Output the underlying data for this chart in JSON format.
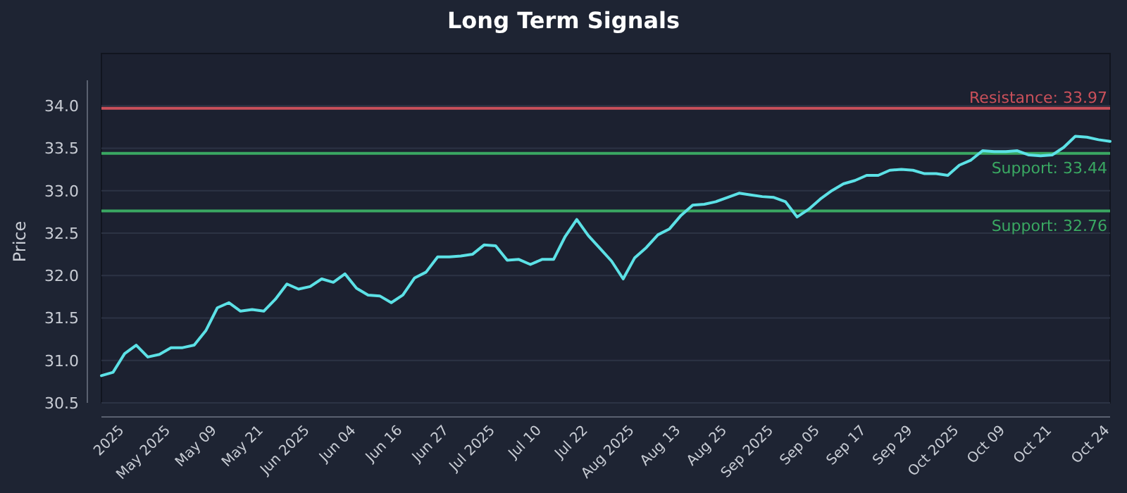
{
  "chart_data": {
    "type": "line",
    "title": "Long Term Signals",
    "ylabel": "Price",
    "categories": [
      null,
      null,
      "2025",
      null,
      null,
      null,
      "May 2025",
      null,
      null,
      null,
      "May 09",
      null,
      null,
      null,
      "May 21",
      null,
      null,
      null,
      "Jun 2025",
      null,
      null,
      null,
      "Jun 04",
      null,
      null,
      null,
      "Jun 16",
      null,
      null,
      null,
      "Jun 27",
      null,
      null,
      null,
      "Jul 2025",
      null,
      null,
      null,
      "Jul 10",
      null,
      null,
      null,
      "Jul 22",
      null,
      null,
      null,
      "Aug 2025",
      null,
      null,
      null,
      "Aug 13",
      null,
      null,
      null,
      "Aug 25",
      null,
      null,
      null,
      "Sep 2025",
      null,
      null,
      null,
      "Sep 05",
      null,
      null,
      null,
      "Sep 17",
      null,
      null,
      null,
      "Sep 29",
      null,
      null,
      null,
      "Oct 2025",
      null,
      null,
      null,
      "Oct 09",
      null,
      null,
      null,
      "Oct 21",
      null,
      null,
      null,
      null,
      "Oct 24"
    ],
    "series": [
      {
        "color": "#5ce1e6",
        "values": [
          30.82,
          30.86,
          31.08,
          31.18,
          31.04,
          31.07,
          31.15,
          31.15,
          31.18,
          31.35,
          31.62,
          31.68,
          31.58,
          31.6,
          31.58,
          31.72,
          31.9,
          31.84,
          31.87,
          31.96,
          31.92,
          32.02,
          31.85,
          31.77,
          31.76,
          31.68,
          31.77,
          31.97,
          32.04,
          32.22,
          32.22,
          32.23,
          32.25,
          32.36,
          32.35,
          32.18,
          32.19,
          32.13,
          32.19,
          32.19,
          32.46,
          32.66,
          32.47,
          32.32,
          32.17,
          31.96,
          32.21,
          32.33,
          32.48,
          32.55,
          32.71,
          32.83,
          32.84,
          32.87,
          32.92,
          32.97,
          32.95,
          32.93,
          32.92,
          32.87,
          32.69,
          32.78,
          32.9,
          33.0,
          33.08,
          33.12,
          33.18,
          33.18,
          33.24,
          33.25,
          33.24,
          33.2,
          33.2,
          33.18,
          33.3,
          33.36,
          33.47,
          33.46,
          33.46,
          33.47,
          33.42,
          33.41,
          33.42,
          33.51,
          33.64,
          33.63,
          33.6,
          33.58
        ]
      }
    ],
    "ylim": [
      30.5,
      34.3
    ],
    "yticks": [
      {
        "value": 30.5,
        "label": "30.5"
      },
      {
        "value": 31,
        "label": "31.0"
      },
      {
        "value": 31.5,
        "label": "31.5"
      },
      {
        "value": 32,
        "label": "32.0"
      },
      {
        "value": 32.5,
        "label": "32.5"
      },
      {
        "value": 33,
        "label": "33.0"
      },
      {
        "value": 33.5,
        "label": "33.5"
      },
      {
        "value": 34,
        "label": "34.0"
      }
    ],
    "grid": "y",
    "marker": "none",
    "line_style": "solid",
    "ref_lines": [
      {
        "axis": "y",
        "value": 33.97,
        "label": "Resistance: 33.97",
        "color": "#c9505a"
      },
      {
        "axis": "y",
        "value": 33.44,
        "label": "Support: 33.44",
        "color": "#3aa862"
      },
      {
        "axis": "y",
        "value": 32.76,
        "label": "Support: 32.76",
        "color": "#3aa862"
      }
    ]
  }
}
